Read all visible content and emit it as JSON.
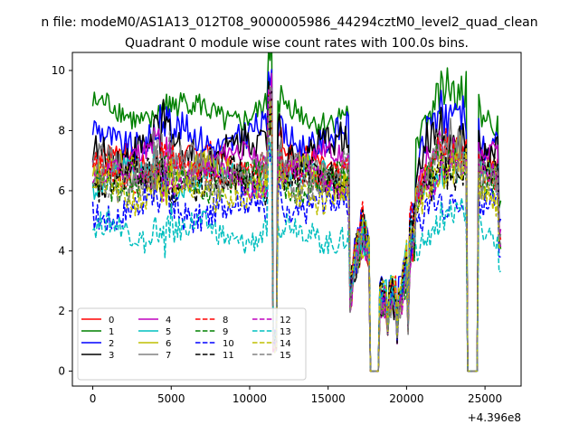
{
  "suptitle": "n file: modeM0/AS1A13_012T08_9000005986_44294cztM0_level2_quad_clean",
  "chart_data": {
    "type": "line",
    "title": "Quadrant 0 module wise count rates with 100.0s bins.",
    "xlabel": "",
    "ylabel": "",
    "x_offset_label": "+4.396e8",
    "xlim": [
      -1300,
      27300
    ],
    "ylim": [
      -0.5,
      10.6
    ],
    "xticks": [
      0,
      5000,
      10000,
      15000,
      20000,
      25000
    ],
    "xtick_labels": [
      "0",
      "5000",
      "10000",
      "15000",
      "20000",
      "25000"
    ],
    "yticks": [
      0,
      2,
      4,
      6,
      8,
      10
    ],
    "ytick_labels": [
      "0",
      "2",
      "4",
      "6",
      "8",
      "10"
    ],
    "legend_location": "lower left",
    "legend_columns": 4,
    "series": [
      {
        "name": "0",
        "color": "#ff0000",
        "style": "solid",
        "level": 7.0
      },
      {
        "name": "1",
        "color": "#008000",
        "style": "solid",
        "level": 8.6
      },
      {
        "name": "2",
        "color": "#0000ff",
        "style": "solid",
        "level": 7.8
      },
      {
        "name": "3",
        "color": "#000000",
        "style": "solid",
        "level": 7.4
      },
      {
        "name": "4",
        "color": "#bf00bf",
        "style": "solid",
        "level": 7.0
      },
      {
        "name": "5",
        "color": "#00bfbf",
        "style": "solid",
        "level": 6.4
      },
      {
        "name": "6",
        "color": "#bfbf00",
        "style": "solid",
        "level": 6.5
      },
      {
        "name": "7",
        "color": "#808080",
        "style": "solid",
        "level": 6.7
      },
      {
        "name": "8",
        "color": "#ff0000",
        "style": "dashed",
        "level": 6.6
      },
      {
        "name": "9",
        "color": "#008000",
        "style": "dashed",
        "level": 6.3
      },
      {
        "name": "10",
        "color": "#0000ff",
        "style": "dashed",
        "level": 5.4
      },
      {
        "name": "11",
        "color": "#000000",
        "style": "dashed",
        "level": 6.3
      },
      {
        "name": "12",
        "color": "#bf00bf",
        "style": "dashed",
        "level": 6.4
      },
      {
        "name": "13",
        "color": "#00bfbf",
        "style": "dashed",
        "level": 4.6
      },
      {
        "name": "14",
        "color": "#bfbf00",
        "style": "dashed",
        "level": 6.0
      },
      {
        "name": "15",
        "color": "#808080",
        "style": "dashed",
        "level": 6.5
      }
    ],
    "time_range": [
      0,
      26000
    ],
    "bin_seconds": 100,
    "features": {
      "spike": {
        "x": 11600,
        "peak": 10.1,
        "dip": 0.6
      },
      "gap_1": [
        17700,
        18200
      ],
      "gap_2": [
        23900,
        24500
      ],
      "low_segment": [
        16400,
        20500
      ],
      "low_segment_level": 2.8,
      "end_drop": 3.2
    }
  }
}
